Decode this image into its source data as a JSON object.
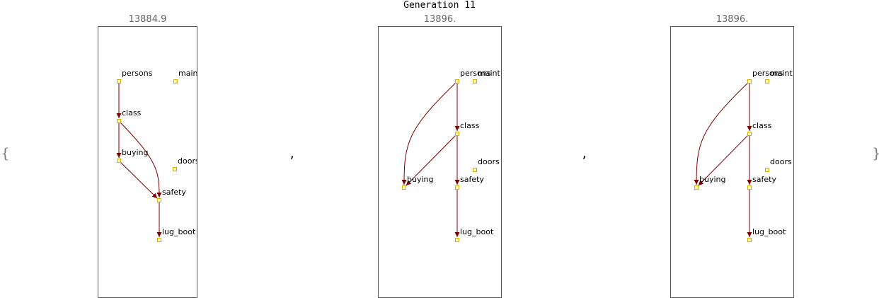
{
  "title": "Generation 11",
  "open_brace": "{",
  "close_brace": "}",
  "separator": ",",
  "graphs": [
    {
      "score": "13884.9",
      "nodes": [
        {
          "id": "persons",
          "label": "persons"
        },
        {
          "id": "maint",
          "label": "maint"
        },
        {
          "id": "class",
          "label": "class"
        },
        {
          "id": "buying",
          "label": "buying"
        },
        {
          "id": "doors",
          "label": "doors"
        },
        {
          "id": "safety",
          "label": "safety"
        },
        {
          "id": "lug_boot",
          "label": "lug_boot"
        }
      ],
      "edges": [
        {
          "from": "persons",
          "to": "class"
        },
        {
          "from": "class",
          "to": "buying"
        },
        {
          "from": "class",
          "to": "safety"
        },
        {
          "from": "buying",
          "to": "safety"
        },
        {
          "from": "safety",
          "to": "lug_boot"
        }
      ]
    },
    {
      "score": "13896.",
      "nodes": [
        {
          "id": "persons",
          "label": "persons"
        },
        {
          "id": "maint",
          "label": "maint"
        },
        {
          "id": "class",
          "label": "class"
        },
        {
          "id": "doors",
          "label": "doors"
        },
        {
          "id": "buying",
          "label": "buying"
        },
        {
          "id": "safety",
          "label": "safety"
        },
        {
          "id": "lug_boot",
          "label": "lug_boot"
        }
      ],
      "edges": [
        {
          "from": "persons",
          "to": "class"
        },
        {
          "from": "persons",
          "to": "buying"
        },
        {
          "from": "class",
          "to": "buying"
        },
        {
          "from": "class",
          "to": "safety"
        },
        {
          "from": "safety",
          "to": "lug_boot"
        }
      ]
    },
    {
      "score": "13896.",
      "nodes": [
        {
          "id": "persons",
          "label": "persons"
        },
        {
          "id": "maint",
          "label": "maint"
        },
        {
          "id": "class",
          "label": "class"
        },
        {
          "id": "doors",
          "label": "doors"
        },
        {
          "id": "buying",
          "label": "buying"
        },
        {
          "id": "safety",
          "label": "safety"
        },
        {
          "id": "lug_boot",
          "label": "lug_boot"
        }
      ],
      "edges": [
        {
          "from": "persons",
          "to": "class"
        },
        {
          "from": "persons",
          "to": "buying"
        },
        {
          "from": "class",
          "to": "buying"
        },
        {
          "from": "class",
          "to": "safety"
        },
        {
          "from": "safety",
          "to": "lug_boot"
        }
      ]
    }
  ]
}
